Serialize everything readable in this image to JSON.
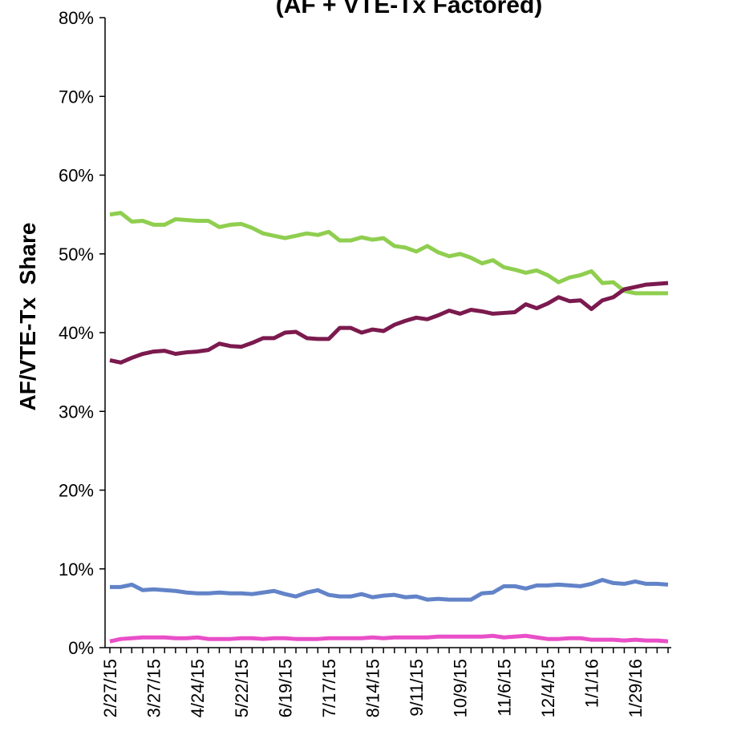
{
  "chart_data": {
    "type": "line",
    "title": "(AF + VTE-Tx Factored)",
    "y_label": "AF/VTE-Tx  Share",
    "categories": [
      "2/27/15",
      null,
      null,
      null,
      "3/27/15",
      null,
      null,
      null,
      "4/24/15",
      null,
      null,
      null,
      "5/22/15",
      null,
      null,
      null,
      "6/19/15",
      null,
      null,
      null,
      "7/17/15",
      null,
      null,
      null,
      "8/14/15",
      null,
      null,
      null,
      "9/11/15",
      null,
      null,
      null,
      "10/9/15",
      null,
      null,
      null,
      "11/6/15",
      null,
      null,
      null,
      "12/4/15",
      null,
      null,
      null,
      "1/1/16",
      null,
      null,
      null,
      "1/29/16",
      null,
      null,
      null
    ],
    "series": [
      {
        "color": "#8fce4f",
        "values": [
          55,
          55.2,
          54.1,
          54.2,
          53.7,
          53.7,
          54.4,
          54.3,
          54.2,
          54.2,
          53.4,
          53.7,
          53.8,
          53.3,
          52.6,
          52.3,
          52.0,
          52.3,
          52.6,
          52.4,
          52.8,
          51.7,
          51.7,
          52.1,
          51.8,
          52.0,
          51.0,
          50.8,
          50.3,
          51.0,
          50.2,
          49.7,
          50.0,
          49.5,
          48.8,
          49.2,
          48.3,
          48.0,
          47.6,
          47.9,
          47.3,
          46.4,
          47.0,
          47.3,
          47.8,
          46.3,
          46.4,
          45.3,
          45.0,
          45.0,
          45.0,
          45.0
        ]
      },
      {
        "color": "#7b1a4e",
        "values": [
          36.5,
          36.2,
          36.8,
          37.3,
          37.6,
          37.7,
          37.3,
          37.5,
          37.6,
          37.8,
          38.6,
          38.3,
          38.2,
          38.7,
          39.3,
          39.3,
          40.0,
          40.1,
          39.3,
          39.2,
          39.2,
          40.6,
          40.6,
          40.0,
          40.4,
          40.2,
          41.0,
          41.5,
          41.9,
          41.7,
          42.2,
          42.8,
          42.4,
          42.9,
          42.7,
          42.4,
          42.5,
          42.6,
          43.6,
          43.1,
          43.7,
          44.5,
          44.0,
          44.1,
          43.0,
          44.1,
          44.5,
          45.5,
          45.8,
          46.1,
          46.2,
          46.3
        ]
      },
      {
        "color": "#6283c8",
        "values": [
          7.7,
          7.7,
          8.0,
          7.3,
          7.4,
          7.3,
          7.2,
          7.0,
          6.9,
          6.9,
          7.0,
          6.9,
          6.9,
          6.8,
          7.0,
          7.2,
          6.8,
          6.5,
          7.0,
          7.3,
          6.7,
          6.5,
          6.5,
          6.8,
          6.4,
          6.6,
          6.7,
          6.4,
          6.5,
          6.1,
          6.2,
          6.1,
          6.1,
          6.1,
          6.9,
          7.0,
          7.8,
          7.8,
          7.5,
          7.9,
          7.9,
          8.0,
          7.9,
          7.8,
          8.1,
          8.6,
          8.2,
          8.1,
          8.4,
          8.1,
          8.1,
          8.0
        ]
      },
      {
        "color": "#e94fc8",
        "values": [
          0.8,
          1.1,
          1.2,
          1.3,
          1.3,
          1.3,
          1.2,
          1.2,
          1.3,
          1.1,
          1.1,
          1.1,
          1.2,
          1.2,
          1.1,
          1.2,
          1.2,
          1.1,
          1.1,
          1.1,
          1.2,
          1.2,
          1.2,
          1.2,
          1.3,
          1.2,
          1.3,
          1.3,
          1.3,
          1.3,
          1.4,
          1.4,
          1.4,
          1.4,
          1.4,
          1.5,
          1.3,
          1.4,
          1.5,
          1.3,
          1.1,
          1.1,
          1.2,
          1.2,
          1.0,
          1.0,
          1.0,
          0.9,
          1.0,
          0.9,
          0.9,
          0.8
        ]
      }
    ],
    "ylim": [
      0,
      80
    ],
    "yticks": [
      {
        "value": 0,
        "label": "0%"
      },
      {
        "value": 10,
        "label": "10%"
      },
      {
        "value": 20,
        "label": "20%"
      },
      {
        "value": 30,
        "label": "30%"
      },
      {
        "value": 40,
        "label": "40%"
      },
      {
        "value": 50,
        "label": "50%"
      },
      {
        "value": 60,
        "label": "60%"
      },
      {
        "value": 70,
        "label": "70%"
      },
      {
        "value": 80,
        "label": "80%"
      }
    ],
    "grid": false
  }
}
